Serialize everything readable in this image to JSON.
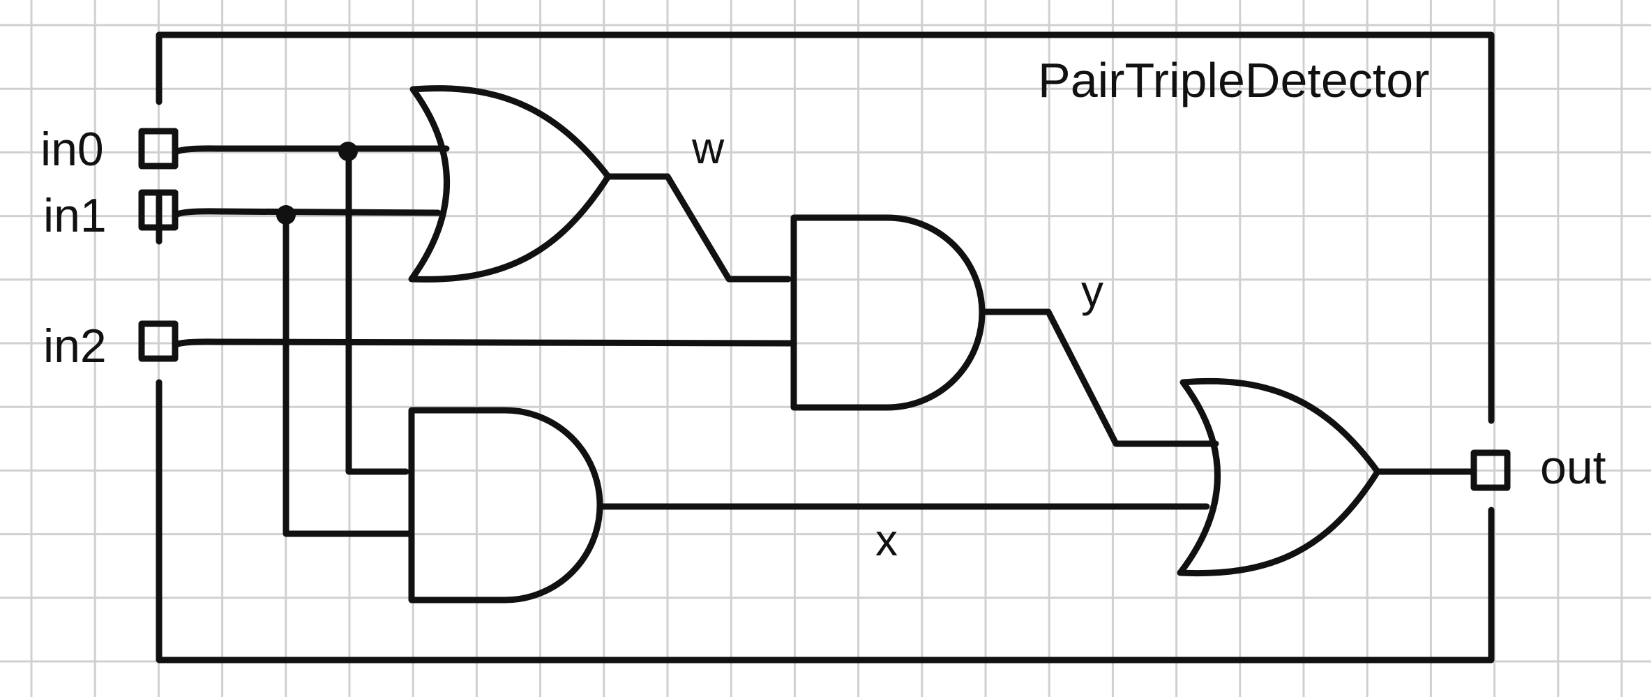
{
  "diagram": {
    "title": "PairTripleDetector",
    "ports": {
      "in0": "in0",
      "in1": "in1",
      "in2": "in2",
      "out": "out"
    },
    "wires": {
      "w": "w",
      "x": "x",
      "y": "y"
    },
    "gates": [
      "or-gate",
      "and-gate",
      "and-gate",
      "or-gate"
    ],
    "colors": {
      "background": "#ffffff",
      "grid": "#d0d0d0",
      "line": "#111111"
    }
  }
}
